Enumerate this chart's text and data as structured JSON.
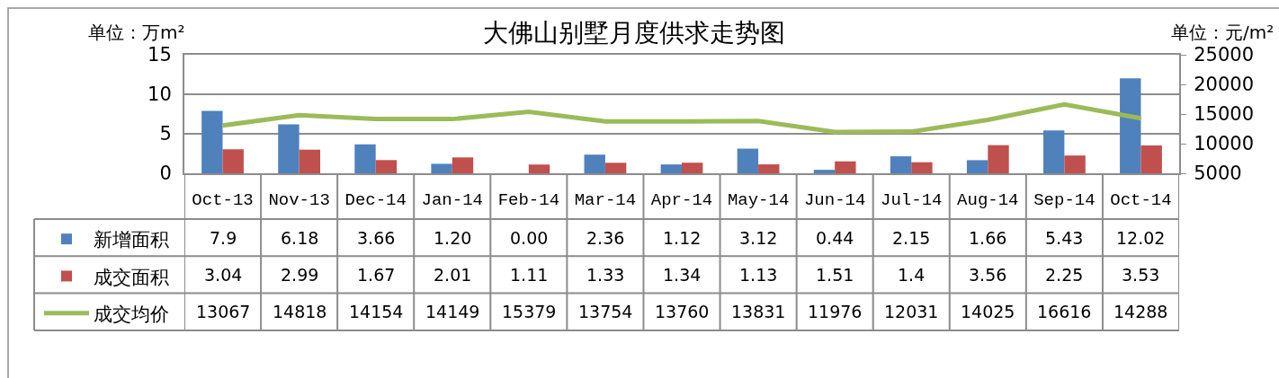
{
  "chart_data": {
    "type": "bar",
    "title": "大佛山别墅月度供求走势图",
    "ylabel": "单位：万m²",
    "y2label": "单位：元/m²",
    "categories": [
      "Oct-13",
      "Nov-13",
      "Dec-14",
      "Jan-14",
      "Feb-14",
      "Mar-14",
      "Apr-14",
      "May-14",
      "Jun-14",
      "Jul-14",
      "Aug-14",
      "Sep-14",
      "Oct-14"
    ],
    "series": [
      {
        "name": "新增面积",
        "color": "#4f81bd",
        "values": [
          7.9,
          6.18,
          3.66,
          1.2,
          0,
          2.36,
          1.12,
          3.12,
          0.44,
          2.15,
          1.66,
          5.43,
          12.02
        ],
        "value_labels": [
          "7.9",
          "6.18",
          "3.66",
          "1.20",
          "0.00",
          "2.36",
          "1.12",
          "3.12",
          "0.44",
          "2.15",
          "1.66",
          "5.43",
          "12.02"
        ]
      },
      {
        "name": "成交面积",
        "color": "#c0504d",
        "values": [
          3.04,
          2.99,
          1.67,
          2.01,
          1.11,
          1.33,
          1.34,
          1.13,
          1.51,
          1.4,
          3.56,
          2.25,
          3.53
        ],
        "value_labels": [
          "3.04",
          "2.99",
          "1.67",
          "2.01",
          "1.11",
          "1.33",
          "1.34",
          "1.13",
          "1.51",
          "1.4",
          "3.56",
          "2.25",
          "3.53"
        ]
      },
      {
        "name": "成交均价",
        "color": "#9bbb59",
        "type": "line",
        "axis": "y2",
        "values": [
          13067,
          14818,
          14154,
          14149,
          15379,
          13754,
          13760,
          13831,
          11976,
          12031,
          14025,
          16616,
          14288
        ],
        "value_labels": [
          "13067",
          "14818",
          "14154",
          "14149",
          "15379",
          "13754",
          "13760",
          "13831",
          "11976",
          "12031",
          "14025",
          "16616",
          "14288"
        ]
      }
    ],
    "ylim": [
      0,
      15
    ],
    "yticks": [
      0,
      5,
      10,
      15
    ],
    "y2lim": [
      5000,
      25000
    ],
    "y2ticks": [
      5000,
      10000,
      15000,
      20000,
      25000
    ],
    "grid": "y",
    "legend": "bottom left",
    "marker": "none",
    "line_style": "solid"
  }
}
